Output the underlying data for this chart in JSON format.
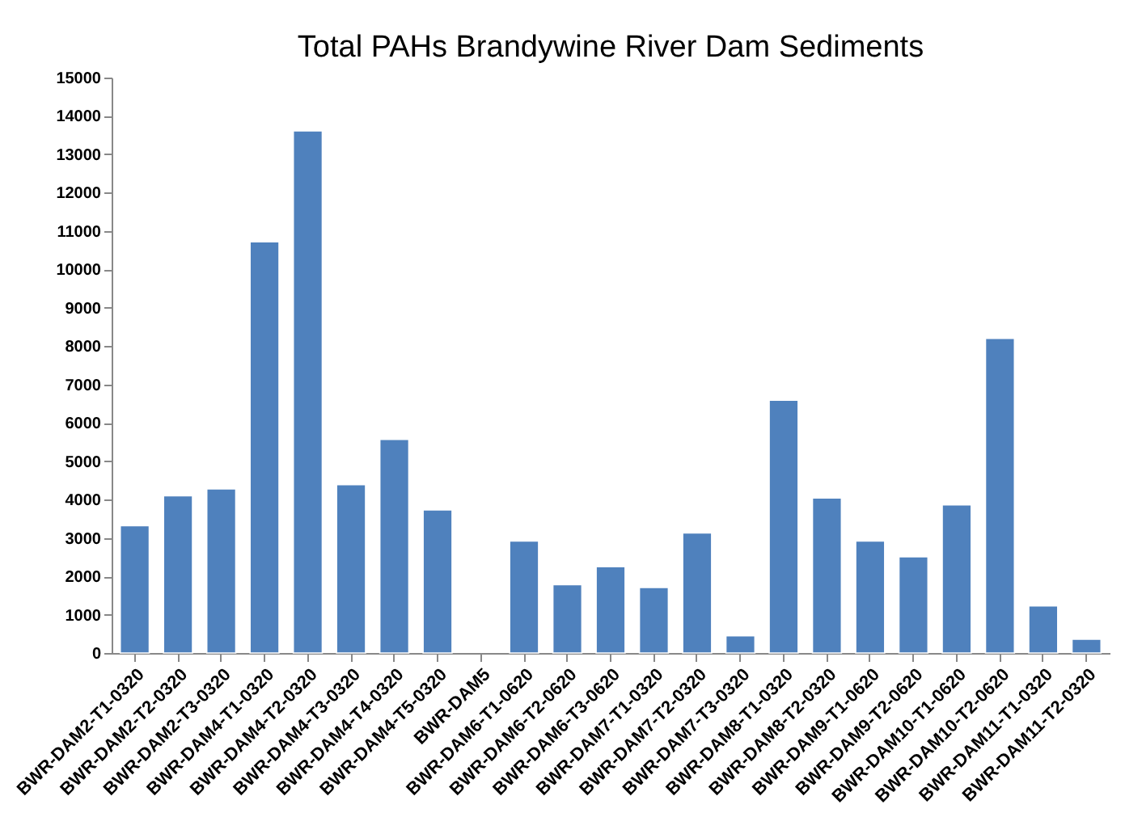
{
  "chart_data": {
    "type": "bar",
    "title": "Total PAHs Brandywine River Dam Sediments",
    "categories": [
      "BWR-DAM2-T1-0320",
      "BWR-DAM2-T2-0320",
      "BWR-DAM2-T3-0320",
      "BWR-DAM4-T1-0320",
      "BWR-DAM4-T2-0320",
      "BWR-DAM4-T3-0320",
      "BWR-DAM4-T4-0320",
      "BWR-DAM4-T5-0320",
      "BWR-DAM5",
      "BWR-DAM6-T1-0620",
      "BWR-DAM6-T2-0620",
      "BWR-DAM6-T3-0620",
      "BWR-DAM7-T1-0320",
      "BWR-DAM7-T2-0320",
      "BWR-DAM7-T3-0320",
      "BWR-DAM8-T1-0320",
      "BWR-DAM8-T2-0320",
      "BWR-DAM9-T1-0620",
      "BWR-DAM9-T2-0620",
      "BWR-DAM10-T1-0620",
      "BWR-DAM10-T2-0620",
      "BWR-DAM11-T1-0320",
      "BWR-DAM11-T2-0320"
    ],
    "values": [
      3320,
      4100,
      4280,
      10720,
      13610,
      4390,
      5570,
      3730,
      null,
      2920,
      1780,
      2250,
      1710,
      3130,
      450,
      6590,
      4040,
      2920,
      2510,
      3860,
      8200,
      1230,
      360
    ],
    "color": "#4f81bd",
    "ylim": [
      0,
      15000
    ],
    "yticks": [
      0,
      1000,
      2000,
      3000,
      4000,
      5000,
      6000,
      7000,
      8000,
      9000,
      10000,
      11000,
      12000,
      13000,
      14000,
      15000
    ],
    "grid": false
  }
}
